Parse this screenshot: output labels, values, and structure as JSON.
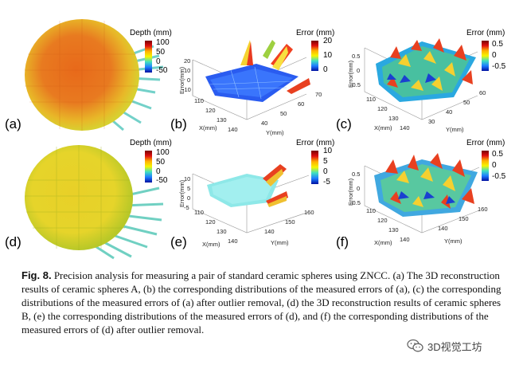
{
  "panels": [
    {
      "id": "a",
      "label": "(a)",
      "cbar_title": "Depth (mm)",
      "cbar_ticks": [
        "100",
        "50",
        "0",
        "-50"
      ]
    },
    {
      "id": "b",
      "label": "(b)",
      "cbar_title": "Error (mm)",
      "cbar_ticks": [
        "20",
        "10",
        "0"
      ],
      "axes": {
        "z_label": "Error(mm)",
        "z_ticks": [
          "20",
          "10",
          "0",
          "-10"
        ],
        "x_label": "X(mm)",
        "x_ticks": [
          "110",
          "120",
          "130",
          "140"
        ],
        "y_label": "Y(mm)",
        "y_ticks": [
          "40",
          "50",
          "60",
          "70"
        ]
      }
    },
    {
      "id": "c",
      "label": "(c)",
      "cbar_title": "Error (mm)",
      "cbar_ticks": [
        "0.5",
        "0",
        "-0.5"
      ],
      "axes": {
        "z_label": "Error(mm)",
        "z_ticks": [
          "0.5",
          "0",
          "-0.5"
        ],
        "x_label": "X(mm)",
        "x_ticks": [
          "110",
          "120",
          "130",
          "140"
        ],
        "y_label": "Y(mm)",
        "y_ticks": [
          "30",
          "40",
          "50",
          "60"
        ]
      }
    },
    {
      "id": "d",
      "label": "(d)",
      "cbar_title": "Depth (mm)",
      "cbar_ticks": [
        "100",
        "50",
        "0",
        "-50"
      ]
    },
    {
      "id": "e",
      "label": "(e)",
      "cbar_title": "Error (mm)",
      "cbar_ticks": [
        "10",
        "5",
        "0",
        "-5"
      ],
      "axes": {
        "z_label": "Error(mm)",
        "z_ticks": [
          "10",
          "5",
          "0",
          "-5"
        ],
        "x_label": "X(mm)",
        "x_ticks": [
          "110",
          "120",
          "130",
          "140"
        ],
        "y_label": "Y(mm)",
        "y_ticks": [
          "140",
          "150",
          "160"
        ]
      }
    },
    {
      "id": "f",
      "label": "(f)",
      "cbar_title": "Error (mm)",
      "cbar_ticks": [
        "0.5",
        "0",
        "-0.5"
      ],
      "axes": {
        "z_label": "Error(mm)",
        "z_ticks": [
          "0.5",
          "0",
          "-0.5"
        ],
        "x_label": "X(mm)",
        "x_ticks": [
          "110",
          "120",
          "130",
          "140"
        ],
        "y_label": "Y(mm)",
        "y_ticks": [
          "140",
          "150",
          "160"
        ]
      }
    }
  ],
  "caption": {
    "fig_label": "Fig. 8.",
    "text": " Precision analysis for measuring a pair of standard ceramic spheres using ZNCC. (a) The 3D reconstruction results of ceramic spheres A, (b) the corresponding distributions of the measured errors of (a), (c) the corresponding distributions of the measured errors of (a) after outlier removal, (d) the 3D reconstruction results of ceramic spheres B, (e) the corresponding distributions of the measured errors of (d), and (f) the corresponding distributions of the measured errors of (d) after outlier removal."
  },
  "watermark": {
    "text": "3D视觉工坊",
    "icon": "wechat-icon"
  }
}
